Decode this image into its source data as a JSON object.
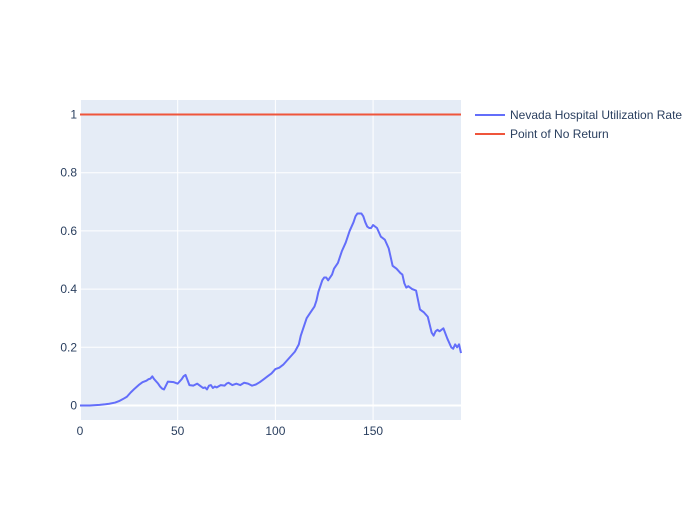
{
  "colors": {
    "plot_bg": "#e5ecf6",
    "grid": "#ffffff",
    "text": "#2a3f5f",
    "series_1": "#636efa",
    "series_2": "#ef553b"
  },
  "chart_data": {
    "type": "line",
    "title": "",
    "xlabel": "",
    "ylabel": "",
    "xlim": [
      0,
      195
    ],
    "ylim": [
      -0.05,
      1.05
    ],
    "grid": true,
    "legend_position": "top-right",
    "x_ticks": [
      0,
      50,
      100,
      150
    ],
    "y_ticks": [
      0,
      0.2,
      0.4,
      0.6,
      0.8,
      1
    ],
    "x_tick_labels": [
      "0",
      "50",
      "100",
      "150"
    ],
    "y_tick_labels": [
      "0",
      "0.2",
      "0.4",
      "0.6",
      "0.8",
      "1"
    ],
    "series": [
      {
        "name": "Nevada Hospital Utilization Rate",
        "color": "#636efa",
        "x": [
          0,
          5,
          10,
          13,
          15,
          18,
          20,
          22,
          24,
          26,
          28,
          30,
          32,
          34,
          35,
          36,
          37,
          38,
          40,
          41,
          42,
          43,
          45,
          48,
          50,
          52,
          53,
          54,
          56,
          58,
          60,
          62,
          63,
          64,
          65,
          66,
          67,
          68,
          69,
          70,
          72,
          74,
          75,
          76,
          78,
          80,
          82,
          84,
          86,
          88,
          90,
          92,
          94,
          96,
          98,
          100,
          102,
          103,
          104,
          106,
          108,
          110,
          112,
          113,
          114,
          116,
          118,
          120,
          121,
          122,
          123,
          124,
          125,
          126,
          127,
          128,
          129,
          130,
          132,
          134,
          136,
          138,
          140,
          141,
          142,
          143,
          144,
          145,
          146,
          147,
          148,
          149,
          150,
          152,
          154,
          156,
          158,
          160,
          162,
          164,
          165,
          166,
          167,
          168,
          170,
          172,
          174,
          175,
          176,
          178,
          180,
          181,
          182,
          183,
          184,
          186,
          188,
          190,
          191,
          192,
          193,
          194,
          195
        ],
        "y": [
          0.0,
          0.0,
          0.002,
          0.004,
          0.006,
          0.01,
          0.015,
          0.022,
          0.03,
          0.045,
          0.058,
          0.07,
          0.08,
          0.085,
          0.09,
          0.092,
          0.1,
          0.09,
          0.075,
          0.065,
          0.058,
          0.055,
          0.082,
          0.08,
          0.075,
          0.09,
          0.1,
          0.105,
          0.07,
          0.068,
          0.075,
          0.065,
          0.06,
          0.062,
          0.055,
          0.068,
          0.07,
          0.06,
          0.065,
          0.062,
          0.07,
          0.068,
          0.075,
          0.078,
          0.07,
          0.075,
          0.07,
          0.078,
          0.075,
          0.068,
          0.072,
          0.08,
          0.09,
          0.1,
          0.11,
          0.125,
          0.13,
          0.135,
          0.14,
          0.155,
          0.17,
          0.185,
          0.21,
          0.24,
          0.26,
          0.3,
          0.32,
          0.34,
          0.36,
          0.39,
          0.41,
          0.43,
          0.44,
          0.44,
          0.43,
          0.44,
          0.45,
          0.47,
          0.49,
          0.53,
          0.56,
          0.6,
          0.63,
          0.65,
          0.66,
          0.66,
          0.66,
          0.65,
          0.63,
          0.615,
          0.61,
          0.61,
          0.62,
          0.61,
          0.58,
          0.57,
          0.54,
          0.48,
          0.47,
          0.455,
          0.45,
          0.42,
          0.405,
          0.41,
          0.4,
          0.395,
          0.33,
          0.325,
          0.32,
          0.305,
          0.25,
          0.24,
          0.255,
          0.26,
          0.255,
          0.265,
          0.23,
          0.2,
          0.195,
          0.21,
          0.2,
          0.21,
          0.18
        ]
      },
      {
        "name": "Point of No Return",
        "color": "#ef553b",
        "x": [
          0,
          195
        ],
        "y": [
          1,
          1
        ]
      }
    ]
  }
}
